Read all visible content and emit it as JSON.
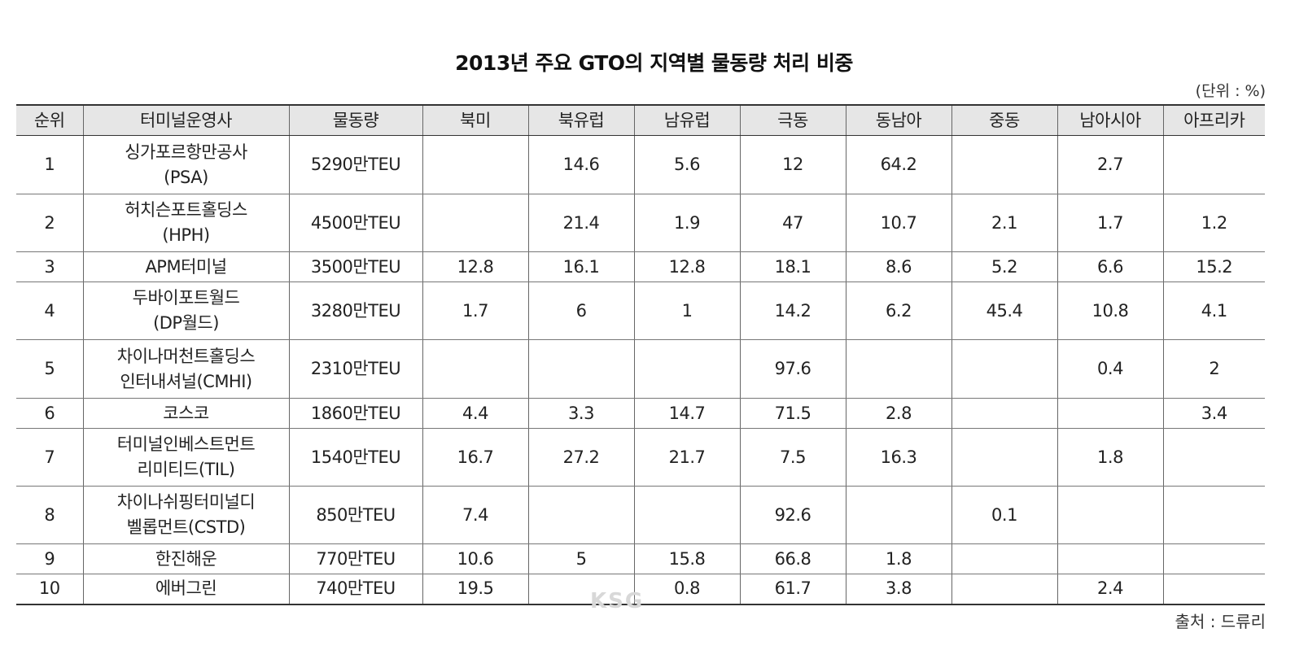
{
  "title": "2013년 주요 GTO의 지역별 물동량 처리 비중",
  "unit": "(단위 : %)",
  "headers": [
    "순위",
    "터미널운영사",
    "물동량",
    "북미",
    "북유럽",
    "남유럽",
    "극동",
    "동남아",
    "중동",
    "남아시아",
    "아프리카"
  ],
  "rows": [
    {
      "rank": "1",
      "company": [
        "싱가포르항만공사",
        "(PSA)"
      ],
      "volume": "5290만TEU",
      "values": [
        "",
        "14.6",
        "5.6",
        "12",
        "64.2",
        "",
        "2.7",
        ""
      ]
    },
    {
      "rank": "2",
      "company": [
        "허치슨포트홀딩스",
        "(HPH)"
      ],
      "volume": "4500만TEU",
      "values": [
        "",
        "21.4",
        "1.9",
        "47",
        "10.7",
        "2.1",
        "1.7",
        "1.2"
      ]
    },
    {
      "rank": "3",
      "company": [
        "APM터미널"
      ],
      "volume": "3500만TEU",
      "values": [
        "12.8",
        "16.1",
        "12.8",
        "18.1",
        "8.6",
        "5.2",
        "6.6",
        "15.2"
      ]
    },
    {
      "rank": "4",
      "company": [
        "두바이포트월드",
        "(DP월드)"
      ],
      "volume": "3280만TEU",
      "values": [
        "1.7",
        "6",
        "1",
        "14.2",
        "6.2",
        "45.4",
        "10.8",
        "4.1"
      ]
    },
    {
      "rank": "5",
      "company": [
        "차이나머천트홀딩스",
        "인터내셔널(CMHI)"
      ],
      "volume": "2310만TEU",
      "values": [
        "",
        "",
        "",
        "97.6",
        "",
        "",
        "0.4",
        "2"
      ]
    },
    {
      "rank": "6",
      "company": [
        "코스코"
      ],
      "volume": "1860만TEU",
      "values": [
        "4.4",
        "3.3",
        "14.7",
        "71.5",
        "2.8",
        "",
        "",
        "3.4"
      ]
    },
    {
      "rank": "7",
      "company": [
        "터미널인베스트먼트",
        "리미티드(TIL)"
      ],
      "volume": "1540만TEU",
      "values": [
        "16.7",
        "27.2",
        "21.7",
        "7.5",
        "16.3",
        "",
        "1.8",
        ""
      ]
    },
    {
      "rank": "8",
      "company": [
        "차이나쉬핑터미널디",
        "벨롭먼트(CSTD)"
      ],
      "volume": "850만TEU",
      "values": [
        "7.4",
        "",
        "",
        "92.6",
        "",
        "0.1",
        "",
        ""
      ]
    },
    {
      "rank": "9",
      "company": [
        "한진해운"
      ],
      "volume": "770만TEU",
      "values": [
        "10.6",
        "5",
        "15.8",
        "66.8",
        "1.8",
        "",
        "",
        ""
      ]
    },
    {
      "rank": "10",
      "company": [
        "에버그린"
      ],
      "volume": "740만TEU",
      "values": [
        "19.5",
        "",
        "0.8",
        "61.7",
        "3.8",
        "",
        "2.4",
        ""
      ]
    }
  ],
  "source": "출처 : 드류리",
  "watermark": "KSG"
}
